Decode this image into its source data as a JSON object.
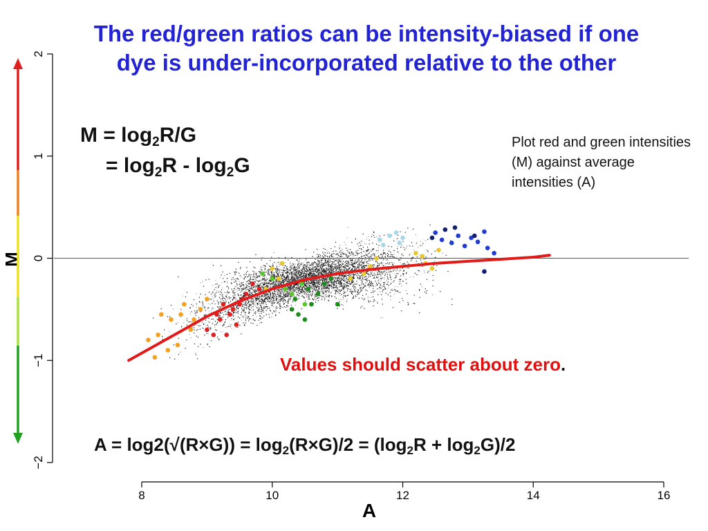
{
  "title": {
    "line1": "The red/green ratios can be intensity-biased if one",
    "line2": "dye is under-incorporated relative to the other"
  },
  "formula_m": {
    "line1_lhs": "M = log",
    "line1_sub": "2",
    "line1_rhs": "R/G",
    "line2_a": "= log",
    "line2_sub1": "2",
    "line2_b": "R - log",
    "line2_sub2": "2",
    "line2_c": "G"
  },
  "side_note": "Plot red and green intensities (M) against average intensities (A)",
  "scatter_note": {
    "text": "Values should scatter about zero",
    "suffix": "."
  },
  "formula_a": {
    "p1": "A = log2(√(R×G)) = log",
    "s1": "2",
    "p2": "(R×G)/2 = (log",
    "s2": "2",
    "p3": "R + log",
    "s3": "2",
    "p4": "G)/2"
  },
  "chart_data": {
    "type": "scatter",
    "xlabel": "A",
    "ylabel": "M",
    "xlim": [
      8,
      16
    ],
    "ylim": [
      -2,
      2
    ],
    "xticks": [
      8,
      10,
      12,
      14,
      16
    ],
    "yticks": [
      -2,
      -1,
      0,
      1,
      2
    ],
    "reference_line_y": 0,
    "grid": false,
    "loess_curve": {
      "color": "#e11a1a",
      "x": [
        7.8,
        8.5,
        9.0,
        9.5,
        10.0,
        10.5,
        11.0,
        11.5,
        12.0,
        12.5,
        13.0,
        13.5,
        14.0,
        14.25
      ],
      "y": [
        -1.0,
        -0.75,
        -0.57,
        -0.42,
        -0.3,
        -0.21,
        -0.15,
        -0.11,
        -0.08,
        -0.05,
        -0.03,
        -0.01,
        0.01,
        0.03
      ]
    },
    "spot_groups": [
      {
        "color": "#f4a020",
        "x": [
          8.1,
          8.2,
          8.25,
          8.3,
          8.4,
          8.45,
          8.55,
          8.6,
          8.75,
          8.8,
          8.65,
          8.9,
          9.0
        ],
        "y": [
          -0.8,
          -0.97,
          -0.75,
          -0.55,
          -0.9,
          -0.6,
          -0.85,
          -0.55,
          -0.7,
          -0.6,
          -0.45,
          -0.5,
          -0.4
        ]
      },
      {
        "color": "#e02020",
        "x": [
          9.0,
          9.1,
          9.2,
          9.3,
          9.35,
          9.45,
          9.5,
          9.55,
          9.6,
          9.7,
          9.4,
          9.8,
          9.25,
          9.15
        ],
        "y": [
          -0.7,
          -0.75,
          -0.6,
          -0.75,
          -0.55,
          -0.65,
          -0.45,
          -0.4,
          -0.35,
          -0.25,
          -0.5,
          -0.3,
          -0.45,
          -0.55
        ]
      },
      {
        "color": "#e8c830",
        "x": [
          9.9,
          10.0,
          10.1,
          10.15,
          11.2,
          11.4,
          11.5,
          11.6,
          12.2,
          12.3,
          12.35,
          12.45,
          12.55
        ],
        "y": [
          -0.3,
          -0.1,
          -0.2,
          -0.05,
          -0.2,
          -0.15,
          -0.08,
          0.0,
          0.05,
          0.02,
          -0.05,
          -0.1,
          0.08
        ]
      },
      {
        "color": "#58c828",
        "x": [
          9.85,
          10.0,
          10.2,
          10.3,
          10.45,
          10.5
        ],
        "y": [
          -0.15,
          -0.2,
          -0.3,
          -0.35,
          -0.25,
          -0.45
        ]
      },
      {
        "color": "#1d8c1d",
        "x": [
          10.3,
          10.4,
          10.55,
          10.6,
          10.7,
          10.8,
          10.9,
          11.0,
          10.5,
          10.35
        ],
        "y": [
          -0.5,
          -0.55,
          -0.3,
          -0.45,
          -0.35,
          -0.25,
          -0.2,
          -0.45,
          -0.6,
          -0.4
        ]
      },
      {
        "color": "#a8d8e8",
        "x": [
          11.65,
          11.7,
          11.8,
          11.9,
          11.95,
          12.0
        ],
        "y": [
          0.18,
          0.13,
          0.22,
          0.25,
          0.15,
          0.2
        ]
      },
      {
        "color": "#1f3dd0",
        "x": [
          12.5,
          12.6,
          12.75,
          12.85,
          12.95,
          13.05,
          13.15,
          13.25,
          13.3,
          13.4
        ],
        "y": [
          0.25,
          0.18,
          0.15,
          0.22,
          0.12,
          0.2,
          0.16,
          0.26,
          0.1,
          0.05
        ]
      },
      {
        "color": "#14206e",
        "x": [
          12.45,
          12.65,
          12.8,
          13.25,
          13.1
        ],
        "y": [
          0.2,
          0.28,
          0.3,
          -0.13,
          0.22
        ]
      }
    ]
  },
  "color_bar": {
    "segments": [
      "#e02020",
      "#f08020",
      "#f0e020",
      "#a8e040",
      "#20a020"
    ],
    "arrow_up_color": "#e02020",
    "arrow_down_color": "#20a020"
  }
}
